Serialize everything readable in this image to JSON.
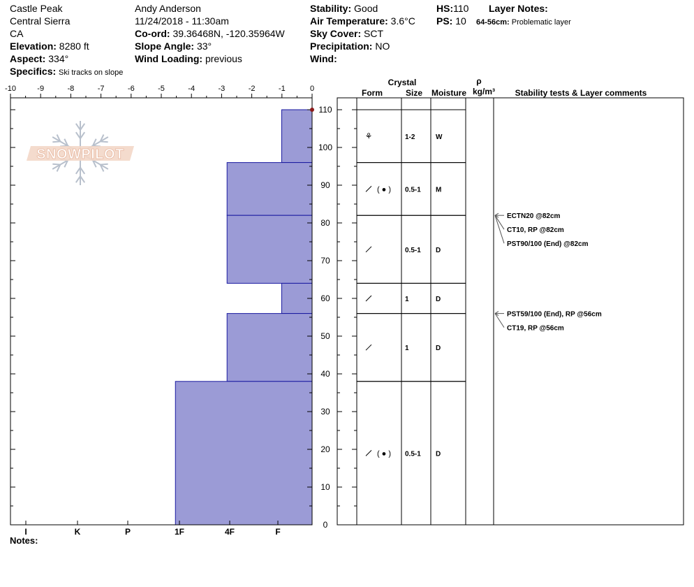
{
  "header": {
    "location": "Castle Peak",
    "range": "Central Sierra",
    "state": "CA",
    "elevation_label": "Elevation:",
    "elevation": "8280 ft",
    "aspect_label": "Aspect:",
    "aspect": "334°",
    "specifics_label": "Specifics:",
    "specifics": "Ski tracks on slope",
    "observer": "Andy Anderson",
    "datetime": "11/24/2018 - 11:30am",
    "coord_label": "Co-ord:",
    "coord": "39.36468N, -120.35964W",
    "slope_label": "Slope Angle:",
    "slope": "33°",
    "wind_loading_label": "Wind Loading:",
    "wind_loading": "previous",
    "stability_label": "Stability:",
    "stability": "Good",
    "air_temp_label": "Air Temperature:",
    "air_temp": "3.6°C",
    "sky_label": "Sky Cover:",
    "sky": "SCT",
    "precip_label": "Precipitation:",
    "precip": "NO",
    "wind_label": "Wind:",
    "wind": "",
    "hs_label": "HS:",
    "hs": "110",
    "ps_label": "PS:",
    "ps": "10",
    "layer_notes_label": "Layer Notes:",
    "layer_note_range": "64-56cm:",
    "layer_note_text": "Problematic layer"
  },
  "logo_text": "SNOWPILOT",
  "table_headers": {
    "crystal": "Crystal",
    "form": "Form",
    "size": "Size",
    "moisture": "Moisture",
    "rho": "ρ",
    "density": "kg/m³",
    "stability": "Stability tests & Layer comments"
  },
  "notes_label": "Notes:",
  "colors": {
    "layer_fill": "#9b9bd6",
    "layer_stroke": "#1a1aa0",
    "hs_marker": "#8b1a1a"
  },
  "chart_data": {
    "type": "bar",
    "orientation": "horizontal",
    "title": "",
    "temperature_axis": {
      "ticks": [
        "-10",
        "-9",
        "-8",
        "-7",
        "-6",
        "-5",
        "-4",
        "-3",
        "-2",
        "-1",
        "0"
      ],
      "range": [
        -10,
        0
      ]
    },
    "height_axis": {
      "ticks": [
        "0",
        "10",
        "20",
        "30",
        "40",
        "50",
        "60",
        "70",
        "80",
        "90",
        "100",
        "110"
      ],
      "range": [
        0,
        110
      ]
    },
    "hardness_axis": {
      "ticks": [
        "I",
        "K",
        "P",
        "1F",
        "4F",
        "F"
      ]
    },
    "layers": [
      {
        "top": 110,
        "bottom": 96,
        "hardness": 1,
        "form_icon": "decomposing",
        "size": "1-2",
        "moisture": "W"
      },
      {
        "top": 96,
        "bottom": 82,
        "hardness": 2.8,
        "form_icon": "facets-rounds",
        "size": "0.5-1",
        "moisture": "M"
      },
      {
        "top": 82,
        "bottom": 64,
        "hardness": 2.8,
        "form_icon": "facets",
        "size": "0.5-1",
        "moisture": "D"
      },
      {
        "top": 64,
        "bottom": 56,
        "hardness": 1,
        "form_icon": "facets",
        "size": "1",
        "moisture": "D"
      },
      {
        "top": 56,
        "bottom": 38,
        "hardness": 2.8,
        "form_icon": "facets",
        "size": "1",
        "moisture": "D"
      },
      {
        "top": 38,
        "bottom": 0,
        "hardness": 4.5,
        "form_icon": "facets-rounds",
        "size": "0.5-1",
        "moisture": "D"
      }
    ],
    "tests": [
      {
        "height": 82,
        "labels": [
          "ECTN20 @82cm",
          "CT10, RP @82cm",
          "PST90/100 (End) @82cm"
        ]
      },
      {
        "height": 56,
        "labels": [
          "PST59/100 (End), RP @56cm",
          "CT19, RP @56cm"
        ]
      }
    ]
  }
}
